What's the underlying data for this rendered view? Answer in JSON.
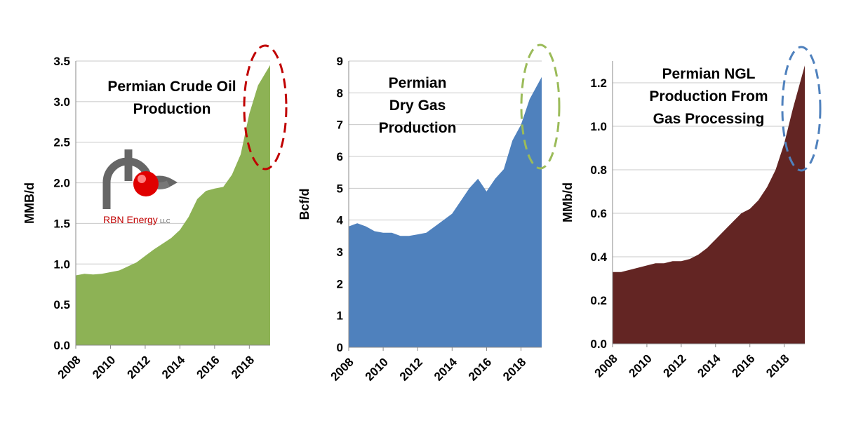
{
  "logo": {
    "text": "RBN Energy",
    "suffix": "LLC"
  },
  "chart_data": [
    {
      "type": "area",
      "title": [
        "Permian Crude Oil",
        "Production"
      ],
      "y_label": "MMB/d",
      "color": "#8db255",
      "x": [
        2008,
        2008.5,
        2009,
        2009.5,
        2010,
        2010.5,
        2011,
        2011.5,
        2012,
        2012.5,
        2013,
        2013.5,
        2014,
        2014.5,
        2015,
        2015.5,
        2016,
        2016.5,
        2017,
        2017.5,
        2018,
        2018.5,
        2019.2
      ],
      "values": [
        0.86,
        0.88,
        0.87,
        0.88,
        0.9,
        0.92,
        0.97,
        1.02,
        1.1,
        1.18,
        1.25,
        1.32,
        1.42,
        1.58,
        1.8,
        1.9,
        1.93,
        1.95,
        2.1,
        2.35,
        2.85,
        3.2,
        3.45
      ],
      "xlim": [
        2008,
        2019.2
      ],
      "xticks": [
        2008,
        2010,
        2012,
        2014,
        2016,
        2018
      ],
      "ylim": [
        0,
        3.5
      ],
      "yticks": [
        {
          "value": 0,
          "label": "0.0"
        },
        0.5,
        {
          "value": 1,
          "label": "1.0"
        },
        1.5,
        {
          "value": 2,
          "label": "2.0"
        },
        2.5,
        {
          "value": 3,
          "label": "3.0"
        },
        3.5
      ],
      "grid": true
    },
    {
      "type": "area",
      "title": [
        "Permian",
        "Dry Gas",
        "Production"
      ],
      "y_label": "Bcf/d",
      "color": "#4f81bd",
      "x": [
        2008,
        2008.5,
        2009,
        2009.5,
        2010,
        2010.5,
        2011,
        2011.5,
        2012,
        2012.5,
        2013,
        2013.5,
        2014,
        2014.5,
        2015,
        2015.5,
        2016,
        2016.5,
        2017,
        2017.5,
        2018,
        2018.5,
        2019.2
      ],
      "values": [
        3.8,
        3.9,
        3.8,
        3.65,
        3.6,
        3.6,
        3.5,
        3.5,
        3.55,
        3.6,
        3.8,
        4.0,
        4.2,
        4.6,
        5.0,
        5.3,
        4.9,
        5.3,
        5.6,
        6.5,
        7.0,
        7.8,
        8.5
      ],
      "xlim": [
        2008,
        2019.2
      ],
      "xticks": [
        2008,
        2010,
        2012,
        2014,
        2016,
        2018
      ],
      "ylim": [
        0,
        9
      ],
      "yticks": [
        0,
        1,
        2,
        3,
        4,
        5,
        6,
        7,
        8,
        9
      ],
      "grid": true
    },
    {
      "type": "area",
      "title": [
        "Permian NGL",
        "Production From",
        "Gas Processing"
      ],
      "y_label": "MMb/d",
      "color": "#632523",
      "x": [
        2008,
        2008.5,
        2009,
        2009.5,
        2010,
        2010.5,
        2011,
        2011.5,
        2012,
        2012.5,
        2013,
        2013.5,
        2014,
        2014.5,
        2015,
        2015.5,
        2016,
        2016.5,
        2017,
        2017.5,
        2018,
        2018.5,
        2019.2
      ],
      "values": [
        0.33,
        0.33,
        0.34,
        0.35,
        0.36,
        0.37,
        0.37,
        0.38,
        0.38,
        0.39,
        0.41,
        0.44,
        0.48,
        0.52,
        0.56,
        0.6,
        0.62,
        0.66,
        0.72,
        0.8,
        0.92,
        1.08,
        1.28
      ],
      "xlim": [
        2008,
        2019.2
      ],
      "xticks": [
        2008,
        2010,
        2012,
        2014,
        2016,
        2018
      ],
      "ylim": [
        0,
        1.3
      ],
      "yticks": [
        {
          "value": 0,
          "label": "0.0"
        },
        0.2,
        0.4,
        0.6,
        0.8,
        {
          "value": 1,
          "label": "1.0"
        },
        1.2
      ],
      "grid": true
    }
  ]
}
